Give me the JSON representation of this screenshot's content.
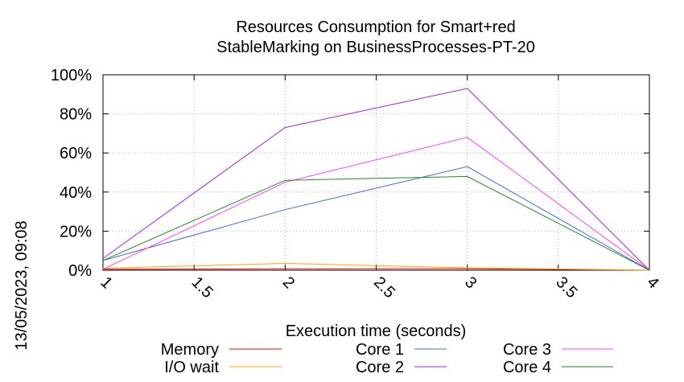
{
  "side_label": "13/05/2023, 09:08",
  "chart_data": {
    "type": "line",
    "title_lines": [
      "Resources Consumption for Smart+red",
      "StableMarking on BusinessProcesses-PT-20"
    ],
    "xlabel": "Execution time (seconds)",
    "ylabel": "",
    "xlim": [
      1,
      4
    ],
    "ylim": [
      0,
      100
    ],
    "x_ticks": [
      "1",
      "1.5",
      "2",
      "2.5",
      "3",
      "3.5",
      "4"
    ],
    "x_tick_values": [
      1,
      1.5,
      2,
      2.5,
      3,
      3.5,
      4
    ],
    "y_ticks": [
      "0%",
      "20%",
      "40%",
      "60%",
      "80%",
      "100%"
    ],
    "y_tick_values": [
      0,
      20,
      40,
      60,
      80,
      100
    ],
    "grid": true,
    "legend_placement": "bottom",
    "x": [
      1,
      2,
      3,
      4
    ],
    "series": [
      {
        "name": "Memory",
        "color": "#ff0000",
        "values": [
          0.5,
          0.7,
          0.8,
          0
        ]
      },
      {
        "name": "I/O wait",
        "color": "#ffa500",
        "values": [
          1,
          3.5,
          1.2,
          0
        ]
      },
      {
        "name": "Core 1",
        "color": "#4169e1",
        "values": [
          5,
          31,
          53,
          0
        ]
      },
      {
        "name": "Core 2",
        "color": "#a020f0",
        "values": [
          6,
          73,
          93,
          0
        ]
      },
      {
        "name": "Core 3",
        "color": "#ff40ff",
        "values": [
          0.5,
          45,
          68,
          0
        ]
      },
      {
        "name": "Core 4",
        "color": "#228b22",
        "values": [
          5,
          46,
          48,
          0
        ]
      }
    ]
  }
}
